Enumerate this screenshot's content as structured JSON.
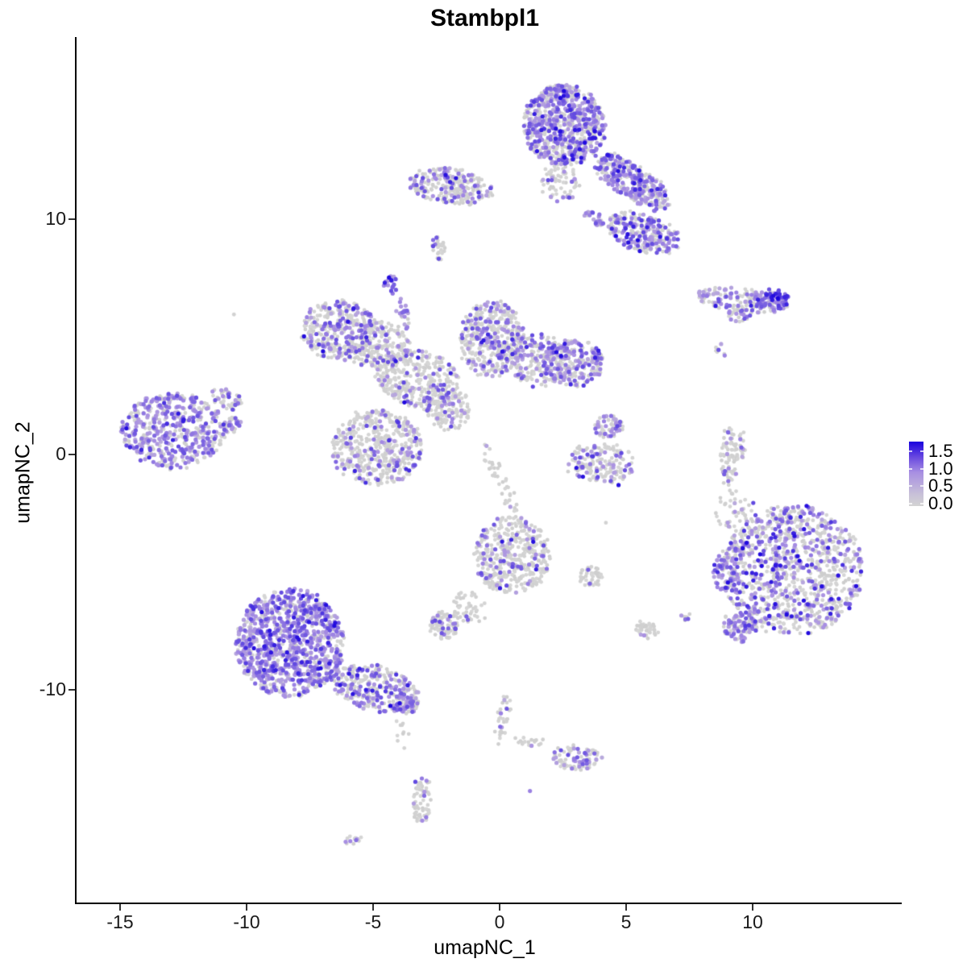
{
  "title": "Stambpl1",
  "axes": {
    "x": {
      "label": "umapNC_1",
      "tick_values": [
        -15,
        -10,
        -5,
        0,
        5,
        10
      ],
      "tick_labels": [
        "-15",
        "-10",
        "-5",
        "0",
        "5",
        "10"
      ],
      "range": [
        -16.7,
        15.9
      ]
    },
    "y": {
      "label": "umapNC_2",
      "tick_values": [
        10,
        0,
        -10
      ],
      "tick_labels": [
        "10",
        "0",
        "-10"
      ],
      "range": [
        -19.1,
        17.7
      ]
    }
  },
  "legend": {
    "tick_labels": [
      "1.5",
      "1.0",
      "0.5",
      "0.0"
    ],
    "tick_values": [
      1.5,
      1.0,
      0.5,
      0.0
    ],
    "vmax_bar": 1.85,
    "low_color": "#D3D3D3",
    "mid_color": "#A88FE2",
    "high_color": "#1902DE"
  },
  "chart_data": {
    "type": "scatter",
    "title": "Stambpl1",
    "xlabel": "umapNC_1",
    "ylabel": "umapNC_2",
    "xlim": [
      -16.7,
      15.9
    ],
    "ylim": [
      -19.1,
      17.7
    ],
    "grid": false,
    "legend_position": "right",
    "point_radius_px": 2.5,
    "color_scale": {
      "low": "#D3D3D3",
      "mid": "#A88FE2",
      "high": "#1902DE",
      "limits": [
        0.0,
        1.5
      ]
    },
    "clusters": [
      {
        "name": "top-main",
        "x": 2.55,
        "y": 14.0,
        "rx": 1.6,
        "ry": 1.7,
        "rot": 0,
        "n": 750,
        "expr": 0.5,
        "high": 0.05
      },
      {
        "name": "top-left-wing",
        "x": -1.9,
        "y": 11.4,
        "rx": 1.7,
        "ry": 0.75,
        "rot": -8,
        "n": 260,
        "expr": 0.28,
        "high": 0.01
      },
      {
        "name": "top-gap",
        "x": 2.4,
        "y": 11.6,
        "rx": 0.75,
        "ry": 0.9,
        "rot": 0,
        "n": 70,
        "expr": 0.15,
        "high": 0
      },
      {
        "name": "top-right-wing",
        "x": 5.25,
        "y": 11.6,
        "rx": 1.85,
        "ry": 0.7,
        "rot": -35,
        "n": 330,
        "expr": 0.55,
        "high": 0.06
      },
      {
        "name": "top-lower-arm",
        "x": 5.7,
        "y": 9.4,
        "rx": 1.5,
        "ry": 0.8,
        "rot": -20,
        "n": 260,
        "expr": 0.5,
        "high": 0.05
      },
      {
        "name": "top-strip",
        "x": 3.8,
        "y": 10.0,
        "rx": 0.55,
        "ry": 0.2,
        "rot": -35,
        "n": 25,
        "expr": 0.7,
        "high": 0
      },
      {
        "name": "top-tail-blob",
        "x": -2.4,
        "y": 8.75,
        "rx": 0.3,
        "ry": 0.5,
        "rot": 0,
        "n": 30,
        "expr": 0.12,
        "high": 0
      },
      {
        "name": "streak-main",
        "x": 9.55,
        "y": 6.55,
        "rx": 1.8,
        "ry": 0.5,
        "rot": -8,
        "n": 140,
        "expr": 0.5,
        "high": 0.02
      },
      {
        "name": "streak-right",
        "x": 10.75,
        "y": 6.6,
        "rx": 0.7,
        "ry": 0.4,
        "rot": 0,
        "n": 70,
        "expr": 0.8,
        "high": 0.18
      },
      {
        "name": "streak-arm",
        "x": 9.4,
        "y": 5.9,
        "rx": 0.5,
        "ry": 0.25,
        "rot": 0,
        "n": 25,
        "expr": 0.5,
        "high": 0
      },
      {
        "name": "dots-pair",
        "x": 8.72,
        "y": 4.4,
        "rx": 0.25,
        "ry": 0.3,
        "rot": 0,
        "n": 6,
        "expr": 0.5,
        "high": 0
      },
      {
        "name": "purple-triangle",
        "x": -4.25,
        "y": 7.25,
        "rx": 0.33,
        "ry": 0.42,
        "rot": 0,
        "n": 22,
        "expr": 0.95,
        "high": 0.1
      },
      {
        "name": "triangle-strip",
        "x": -3.85,
        "y": 6.0,
        "rx": 0.2,
        "ry": 0.75,
        "rot": 10,
        "n": 22,
        "expr": 0.65,
        "high": 0
      },
      {
        "name": "mid-left-wing",
        "x": -6.35,
        "y": 5.3,
        "rx": 1.5,
        "ry": 1.25,
        "rot": 0,
        "n": 330,
        "expr": 0.33,
        "high": 0.01
      },
      {
        "name": "mid-a",
        "x": -4.8,
        "y": 4.6,
        "rx": 1.3,
        "ry": 1.0,
        "rot": 0,
        "n": 220,
        "expr": 0.25,
        "high": 0
      },
      {
        "name": "mid-band",
        "x": -3.2,
        "y": 3.2,
        "rx": 1.7,
        "ry": 1.2,
        "rot": -15,
        "n": 330,
        "expr": 0.22,
        "high": 0.01
      },
      {
        "name": "mid-right-top",
        "x": -0.3,
        "y": 4.9,
        "rx": 1.3,
        "ry": 1.6,
        "rot": 0,
        "n": 420,
        "expr": 0.35,
        "high": 0.02
      },
      {
        "name": "mid-right-1",
        "x": 1.6,
        "y": 4.0,
        "rx": 1.2,
        "ry": 1.1,
        "rot": 0,
        "n": 200,
        "expr": 0.25,
        "high": 0.01
      },
      {
        "name": "mid-right-2",
        "x": 2.9,
        "y": 3.9,
        "rx": 1.2,
        "ry": 1.0,
        "rot": 0,
        "n": 220,
        "expr": 0.55,
        "high": 0.04
      },
      {
        "name": "mid-lower-lobe",
        "x": -4.85,
        "y": 0.3,
        "rx": 1.8,
        "ry": 1.6,
        "rot": 0,
        "n": 480,
        "expr": 0.22,
        "high": 0.01
      },
      {
        "name": "mid-connector",
        "x": -2.1,
        "y": 2.0,
        "rx": 1.0,
        "ry": 0.9,
        "rot": -45,
        "n": 140,
        "expr": 0.25,
        "high": 0
      },
      {
        "name": "mid-trail",
        "x": 0.05,
        "y": -1.1,
        "rx": 2.1,
        "ry": 0.25,
        "rot": -66,
        "n": 40,
        "expr": 0.1,
        "high": 0
      },
      {
        "name": "east-upper-lobe",
        "x": 4.3,
        "y": 1.2,
        "rx": 0.6,
        "ry": 0.5,
        "rot": 0,
        "n": 55,
        "expr": 0.6,
        "high": 0
      },
      {
        "name": "east-crescent",
        "x": 4.0,
        "y": -0.35,
        "rx": 1.35,
        "ry": 0.85,
        "rot": 0,
        "n": 170,
        "expr": 0.3,
        "high": 0.02
      },
      {
        "name": "west-main",
        "x": -12.9,
        "y": 1.0,
        "rx": 2.05,
        "ry": 1.6,
        "rot": 0,
        "n": 520,
        "expr": 0.55,
        "high": 0.02
      },
      {
        "name": "west-tail",
        "x": -10.8,
        "y": 2.4,
        "rx": 0.65,
        "ry": 0.4,
        "rot": -30,
        "n": 55,
        "expr": 0.45,
        "high": 0
      },
      {
        "name": "west-nub",
        "x": -10.6,
        "y": 1.25,
        "rx": 0.4,
        "ry": 0.35,
        "rot": 0,
        "n": 35,
        "expr": 0.5,
        "high": 0
      },
      {
        "name": "southwest-main",
        "x": -8.3,
        "y": -8.0,
        "rx": 2.15,
        "ry": 2.3,
        "rot": 0,
        "n": 1000,
        "expr": 0.72,
        "high": 0.05
      },
      {
        "name": "southwest-wing",
        "x": -4.9,
        "y": -9.95,
        "rx": 1.8,
        "ry": 0.95,
        "rot": -15,
        "n": 300,
        "expr": 0.45,
        "high": 0.03
      },
      {
        "name": "southwest-tip",
        "x": -3.7,
        "y": -10.6,
        "rx": 0.5,
        "ry": 0.4,
        "rot": 0,
        "n": 60,
        "expr": 0.55,
        "high": 0
      },
      {
        "name": "southwest-below",
        "x": -3.85,
        "y": -11.9,
        "rx": 0.3,
        "ry": 0.9,
        "rot": 0,
        "n": 10,
        "expr": 0.05,
        "high": 0
      },
      {
        "name": "east-main",
        "x": 11.6,
        "y": -4.9,
        "rx": 2.8,
        "ry": 2.75,
        "rot": 0,
        "n": 1050,
        "expr": 0.4,
        "high": 0.05
      },
      {
        "name": "east-left-edge",
        "x": 8.95,
        "y": -4.9,
        "rx": 0.55,
        "ry": 0.9,
        "rot": 0,
        "n": 70,
        "expr": 0.65,
        "high": 0.02
      },
      {
        "name": "east-bottom-tip",
        "x": 9.5,
        "y": -7.3,
        "rx": 0.7,
        "ry": 0.6,
        "rot": 0,
        "n": 90,
        "expr": 0.65,
        "high": 0.05
      },
      {
        "name": "east-top-sparse",
        "x": 9.3,
        "y": -2.3,
        "rx": 0.8,
        "ry": 1.0,
        "rot": 0,
        "n": 45,
        "expr": 0.1,
        "high": 0
      },
      {
        "name": "kidney",
        "x": 0.5,
        "y": -4.3,
        "rx": 1.5,
        "ry": 1.65,
        "rot": 0,
        "n": 420,
        "expr": 0.18,
        "high": 0.01
      },
      {
        "name": "kidney-arm",
        "x": -1.35,
        "y": -6.6,
        "rx": 0.8,
        "ry": 0.8,
        "rot": 40,
        "n": 50,
        "expr": 0.08,
        "high": 0
      },
      {
        "name": "kidney-blob",
        "x": -2.2,
        "y": -7.3,
        "rx": 0.55,
        "ry": 0.6,
        "rot": 0,
        "n": 80,
        "expr": 0.25,
        "high": 0
      },
      {
        "name": "small-grey-blob",
        "x": 3.6,
        "y": -5.2,
        "rx": 0.5,
        "ry": 0.4,
        "rot": 0,
        "n": 45,
        "expr": 0.05,
        "high": 0
      },
      {
        "name": "small-blob-2",
        "x": 5.75,
        "y": -7.5,
        "rx": 0.45,
        "ry": 0.4,
        "rot": 0,
        "n": 40,
        "expr": 0.15,
        "high": 0
      },
      {
        "name": "tiny-pair",
        "x": 7.35,
        "y": -6.8,
        "rx": 0.25,
        "ry": 0.2,
        "rot": 0,
        "n": 8,
        "expr": 0.6,
        "high": 0
      },
      {
        "name": "south-cluster",
        "x": 3.05,
        "y": -12.9,
        "rx": 0.95,
        "ry": 0.55,
        "rot": 0,
        "n": 85,
        "expr": 0.3,
        "high": 0
      },
      {
        "name": "south-trail",
        "x": 0.1,
        "y": -11.2,
        "rx": 0.25,
        "ry": 1.15,
        "rot": -10,
        "n": 32,
        "expr": 0.2,
        "high": 0
      },
      {
        "name": "south-arm",
        "x": 1.2,
        "y": -12.2,
        "rx": 0.55,
        "ry": 0.2,
        "rot": 0,
        "n": 18,
        "expr": 0.05,
        "high": 0
      },
      {
        "name": "south-strip",
        "x": -3.1,
        "y": -14.7,
        "rx": 0.35,
        "ry": 1.1,
        "rot": 0,
        "n": 65,
        "expr": 0.12,
        "high": 0
      },
      {
        "name": "south-tiny",
        "x": -5.8,
        "y": -16.4,
        "rx": 0.3,
        "ry": 0.2,
        "rot": 0,
        "n": 12,
        "expr": 0.2,
        "high": 0
      },
      {
        "name": "crescent-strip",
        "x": 9.05,
        "y": -0.1,
        "rx": 0.3,
        "ry": 1.25,
        "rot": 0,
        "n": 65,
        "expr": 0.15,
        "high": 0
      },
      {
        "name": "crescent-strip-2",
        "x": 9.5,
        "y": 0.35,
        "rx": 0.2,
        "ry": 0.6,
        "rot": 0,
        "n": 25,
        "expr": 0.1,
        "high": 0
      }
    ],
    "extra_points": [
      {
        "x": 10.99,
        "y": 6.64,
        "t": 1.0
      },
      {
        "x": 0.1,
        "y": -3.7,
        "t": 0.92
      },
      {
        "x": 4.7,
        "y": -1.3,
        "t": 0.95
      },
      {
        "x": -10.5,
        "y": 5.95,
        "t": 0
      },
      {
        "x": 4.2,
        "y": -2.9,
        "t": 0
      },
      {
        "x": 1.2,
        "y": -14.3,
        "t": 0.55
      },
      {
        "x": 8.55,
        "y": 4.55,
        "t": 0
      },
      {
        "x": 8.9,
        "y": 4.2,
        "t": 0
      }
    ]
  }
}
